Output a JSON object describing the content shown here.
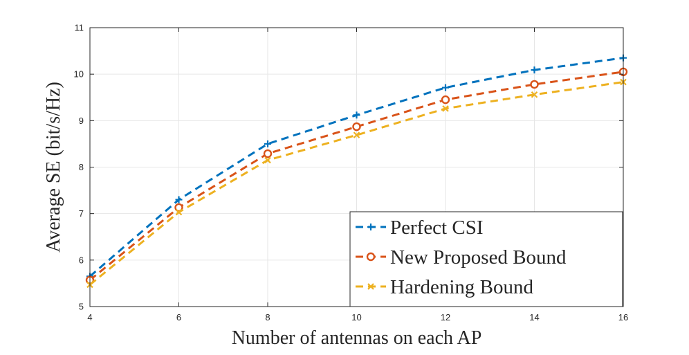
{
  "chart_data": {
    "type": "line",
    "title": "",
    "xlabel": "Number of antennas on each AP",
    "ylabel": "Average SE (bit/s/Hz)",
    "x": [
      4,
      6,
      8,
      10,
      12,
      14,
      16
    ],
    "xticks": [
      "4",
      "6",
      "8",
      "10",
      "12",
      "14",
      "16"
    ],
    "yticks": [
      "5",
      "6",
      "7",
      "8",
      "9",
      "10",
      "11"
    ],
    "xlim": [
      4,
      16
    ],
    "ylim": [
      5,
      11
    ],
    "grid": true,
    "legend_position": "bottom-right",
    "series": [
      {
        "name": "Perfect CSI",
        "marker": "plus",
        "color": "#0072BD",
        "values": [
          5.65,
          7.3,
          8.5,
          9.12,
          9.71,
          10.09,
          10.35
        ]
      },
      {
        "name": "New Proposed Bound",
        "marker": "circle",
        "color": "#D95319",
        "values": [
          5.57,
          7.13,
          8.29,
          8.87,
          9.45,
          9.78,
          10.05
        ]
      },
      {
        "name": "Hardening Bound",
        "marker": "x",
        "color": "#EDB120",
        "values": [
          5.47,
          7.03,
          8.15,
          8.69,
          9.26,
          9.56,
          9.83
        ]
      }
    ]
  }
}
